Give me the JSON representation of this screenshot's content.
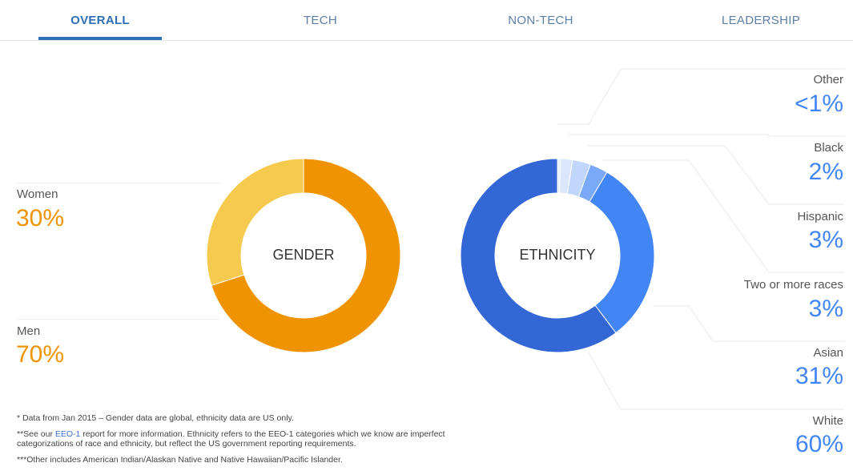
{
  "tabs": [
    {
      "label": "OVERALL",
      "active": true
    },
    {
      "label": "TECH",
      "active": false
    },
    {
      "label": "NON-TECH",
      "active": false
    },
    {
      "label": "LEADERSHIP",
      "active": false
    }
  ],
  "colors": {
    "accent": "#2d6fb4",
    "women": "#f6ca4f",
    "men": "#f09300",
    "white": "#3367d6",
    "asian": "#4286f5",
    "two_or_more": "#79a9f7",
    "hispanic": "#c0d6fb",
    "black": "#dbe7fd",
    "other": "#e8f0fe"
  },
  "chart_data": [
    {
      "type": "pie",
      "title": "GENDER",
      "categories": [
        "Women",
        "Men"
      ],
      "values": [
        30,
        70
      ],
      "labels": [
        "30%",
        "70%"
      ]
    },
    {
      "type": "pie",
      "title": "ETHNICITY",
      "categories": [
        "Other",
        "Black",
        "Hispanic",
        "Two or more races",
        "Asian",
        "White"
      ],
      "values": [
        0.5,
        2,
        3,
        3,
        31,
        60
      ],
      "labels": [
        "<1%",
        "2%",
        "3%",
        "3%",
        "31%",
        "60%"
      ]
    }
  ],
  "footnotes": {
    "note1": "* Data from Jan 2015 – Gender data are global, ethnicity data are US only.",
    "note2_prefix": "**See our ",
    "note2_link": "EEO-1",
    "note2_suffix": " report for more information. Ethnicity refers to the EEO-1 categories which we know are imperfect categorizations of race and ethnicity, but reflect the US government reporting requirements.",
    "note3": "***Other includes American Indian/Alaskan Native and Native Hawaiian/Pacific Islander."
  }
}
